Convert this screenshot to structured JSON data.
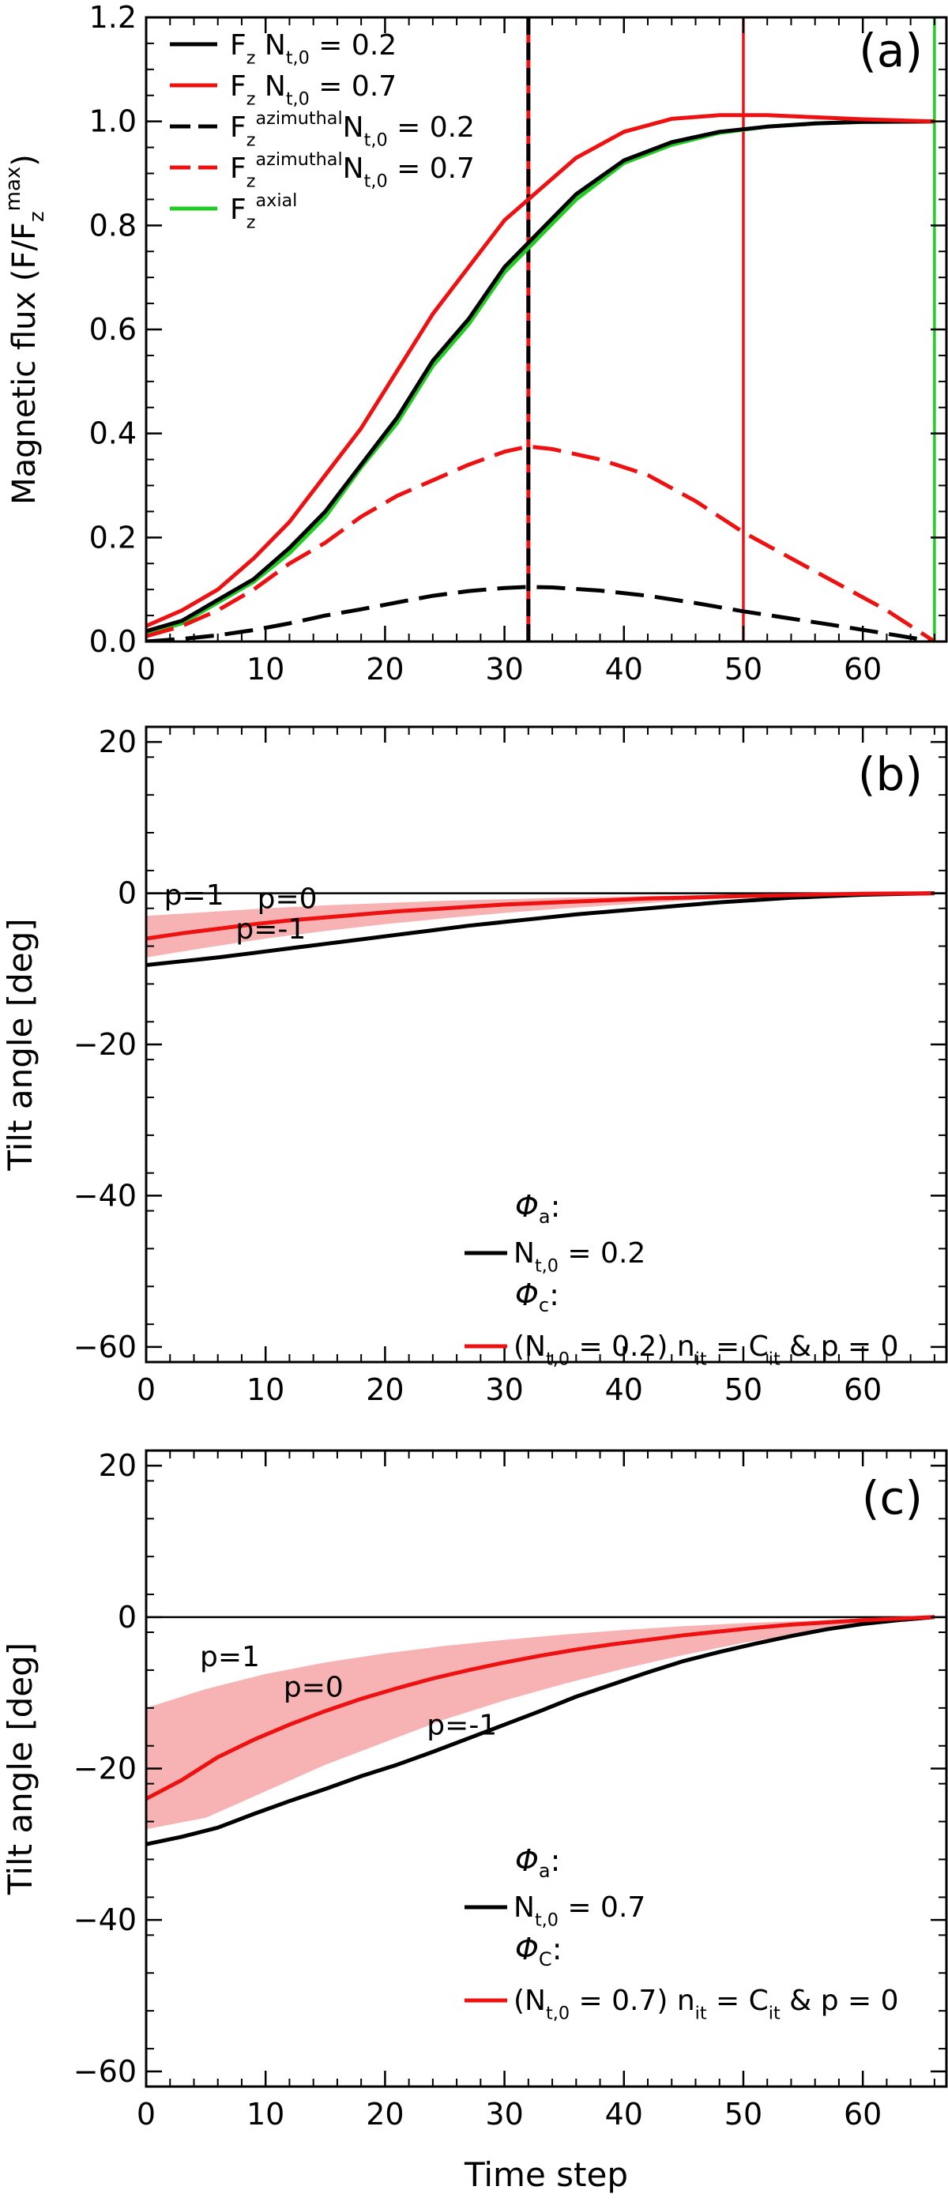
{
  "chart_data": [
    {
      "type": "line",
      "panel_label": "(a)",
      "ylabel": "Magnetic flux (F/F_z^max)",
      "ylabel_parts": {
        "main": "Magnetic flux (F/F",
        "sub": "z",
        "sup": "max",
        "close": ")"
      },
      "xlabel": "",
      "xlim": [
        0,
        67
      ],
      "ylim": [
        0,
        1.2
      ],
      "xticks": [
        "0",
        "10",
        "20",
        "30",
        "40",
        "50",
        "60"
      ],
      "yticks": [
        "0.0",
        "0.2",
        "0.4",
        "0.6",
        "0.8",
        "1.0",
        "1.2"
      ],
      "vlines": [
        {
          "x": 32,
          "color": "#000000",
          "style": "dashed-overlay",
          "overlay_color": "#ee1111"
        },
        {
          "x": 50,
          "color": "#ee1111",
          "style": "solid"
        },
        {
          "x": 66,
          "color": "#22cc22",
          "style": "solid"
        }
      ],
      "legend": [
        {
          "text": "F_z N_t,0 = 0.2",
          "parts": [
            [
              "F",
              ""
            ],
            [
              "z",
              "sub"
            ],
            [
              " N",
              ""
            ],
            [
              "t,0",
              "sub"
            ],
            [
              " = 0.2",
              ""
            ]
          ],
          "color": "#000000",
          "dash": false
        },
        {
          "text": "F_z N_t,0 = 0.7",
          "parts": [
            [
              "F",
              ""
            ],
            [
              "z",
              "sub"
            ],
            [
              " N",
              ""
            ],
            [
              "t,0",
              "sub"
            ],
            [
              " = 0.7",
              ""
            ]
          ],
          "color": "#ee1111",
          "dash": false
        },
        {
          "text": "F_z^azimuthal N_t,0 = 0.2",
          "parts": [
            [
              "F",
              ""
            ],
            [
              "z",
              "sub"
            ],
            [
              "azimuthal",
              "sup"
            ],
            [
              "N",
              ""
            ],
            [
              "t,0",
              "sub"
            ],
            [
              " = 0.2",
              ""
            ]
          ],
          "color": "#000000",
          "dash": true
        },
        {
          "text": "F_z^azimuthal N_t,0 = 0.7",
          "parts": [
            [
              "F",
              ""
            ],
            [
              "z",
              "sub"
            ],
            [
              "azimuthal",
              "sup"
            ],
            [
              "N",
              ""
            ],
            [
              "t,0",
              "sub"
            ],
            [
              " = 0.7",
              ""
            ]
          ],
          "color": "#ee1111",
          "dash": true
        },
        {
          "text": "F_z^axial",
          "parts": [
            [
              "F",
              ""
            ],
            [
              "z",
              "sub"
            ],
            [
              "axial",
              "sup"
            ]
          ],
          "color": "#22cc22",
          "dash": false
        }
      ],
      "series": [
        {
          "name": "F_z^axial",
          "color": "#22cc22",
          "dash": false,
          "x": [
            0,
            3,
            6,
            9,
            12,
            15,
            18,
            21,
            24,
            27,
            30,
            33,
            36,
            40,
            44,
            48,
            52,
            56,
            60,
            66
          ],
          "y": [
            0.015,
            0.035,
            0.075,
            0.115,
            0.17,
            0.24,
            0.335,
            0.42,
            0.53,
            0.61,
            0.71,
            0.78,
            0.85,
            0.92,
            0.955,
            0.978,
            0.99,
            0.996,
            0.999,
            1.0
          ]
        },
        {
          "name": "F_z N_t,0 = 0.2",
          "color": "#000000",
          "dash": false,
          "x": [
            0,
            3,
            6,
            9,
            12,
            15,
            18,
            21,
            24,
            27,
            30,
            33,
            36,
            40,
            44,
            48,
            52,
            56,
            60,
            66
          ],
          "y": [
            0.02,
            0.04,
            0.08,
            0.12,
            0.18,
            0.25,
            0.34,
            0.43,
            0.54,
            0.62,
            0.72,
            0.79,
            0.86,
            0.925,
            0.96,
            0.98,
            0.99,
            0.996,
            0.999,
            1.0
          ]
        },
        {
          "name": "F_z N_t,0 = 0.7",
          "color": "#ee1111",
          "dash": false,
          "x": [
            0,
            3,
            6,
            9,
            12,
            15,
            18,
            21,
            24,
            27,
            30,
            33,
            36,
            40,
            44,
            48,
            52,
            56,
            60,
            66
          ],
          "y": [
            0.03,
            0.06,
            0.1,
            0.16,
            0.23,
            0.32,
            0.41,
            0.52,
            0.63,
            0.72,
            0.81,
            0.87,
            0.93,
            0.98,
            1.005,
            1.012,
            1.012,
            1.008,
            1.004,
            1.0
          ]
        },
        {
          "name": "F_z^azimuthal N_t,0 = 0.2",
          "color": "#000000",
          "dash": true,
          "x": [
            0,
            3,
            6,
            9,
            12,
            15,
            18,
            21,
            24,
            27,
            30,
            32,
            34,
            38,
            42,
            46,
            50,
            54,
            58,
            62,
            66
          ],
          "y": [
            0.0,
            0.005,
            0.012,
            0.022,
            0.035,
            0.05,
            0.062,
            0.075,
            0.088,
            0.097,
            0.103,
            0.105,
            0.104,
            0.098,
            0.088,
            0.074,
            0.058,
            0.044,
            0.03,
            0.015,
            0.0
          ]
        },
        {
          "name": "F_z^azimuthal N_t,0 = 0.7",
          "color": "#ee1111",
          "dash": true,
          "x": [
            0,
            3,
            6,
            9,
            12,
            15,
            18,
            21,
            24,
            27,
            30,
            32,
            34,
            38,
            42,
            46,
            50,
            54,
            58,
            62,
            66
          ],
          "y": [
            0.01,
            0.03,
            0.06,
            0.1,
            0.15,
            0.19,
            0.24,
            0.28,
            0.31,
            0.34,
            0.365,
            0.375,
            0.37,
            0.35,
            0.32,
            0.27,
            0.21,
            0.16,
            0.11,
            0.06,
            0.0
          ]
        }
      ]
    },
    {
      "type": "line",
      "panel_label": "(b)",
      "ylabel": "Tilt angle [deg]",
      "xlabel": "",
      "xlim": [
        0,
        67
      ],
      "ylim": [
        -62,
        22
      ],
      "xticks": [
        "0",
        "10",
        "20",
        "30",
        "40",
        "50",
        "60"
      ],
      "yticks": [
        "−60",
        "−40",
        "−20",
        "0",
        "20"
      ],
      "ytick_values": [
        -60,
        -40,
        -20,
        0,
        20
      ],
      "zero_line": true,
      "band": {
        "name": "p range (p=1 to p=-1)",
        "color": "#f7b3b3",
        "x": [
          0,
          5,
          10,
          15,
          20,
          25,
          30,
          35,
          40,
          45,
          50,
          55,
          60,
          66
        ],
        "upper": [
          -3.0,
          -2.5,
          -2.0,
          -1.6,
          -1.3,
          -1.0,
          -0.8,
          -0.6,
          -0.45,
          -0.3,
          -0.2,
          -0.1,
          -0.05,
          0.0
        ],
        "lower": [
          -8.5,
          -7.2,
          -6.0,
          -5.0,
          -4.1,
          -3.3,
          -2.6,
          -2.0,
          -1.5,
          -1.0,
          -0.6,
          -0.3,
          -0.1,
          0.0
        ]
      },
      "annotations": [
        {
          "text": "p=1",
          "x": 1.5,
          "y": -1.5,
          "color": "#000000"
        },
        {
          "text": "p=0",
          "x": 9.3,
          "y": -2.0,
          "color": "#ee1111"
        },
        {
          "text": "p=-1",
          "x": 7.5,
          "y": -6.0,
          "color": "#000000"
        }
      ],
      "legend": {
        "phi_a": {
          "symbol": "Φ",
          "sub": "a",
          "suffix": ":"
        },
        "entry_a": {
          "text": "N_t,0 = 0.2",
          "parts": [
            [
              "N",
              ""
            ],
            [
              "t,0",
              "sub"
            ],
            [
              " = 0.2",
              ""
            ]
          ],
          "color": "#000000"
        },
        "phi_c": {
          "symbol": "Φ",
          "sub": "c",
          "suffix": ":"
        },
        "entry_c": {
          "text": "(N_t,0 = 0.2) n_it = C_it & p = 0",
          "parts": [
            [
              "(N",
              ""
            ],
            [
              "t,0",
              "sub"
            ],
            [
              " = 0.2) n",
              ""
            ],
            [
              "it",
              "sub"
            ],
            [
              " = C",
              ""
            ],
            [
              "it",
              "sub"
            ],
            [
              " & p = 0",
              ""
            ]
          ],
          "color": "#ee1111"
        }
      },
      "series": [
        {
          "name": "Φa: N_t,0 = 0.2",
          "color": "#000000",
          "x": [
            0,
            3,
            6,
            9,
            12,
            15,
            18,
            21,
            24,
            27,
            30,
            33,
            36,
            39,
            42,
            45,
            48,
            51,
            54,
            57,
            60,
            63,
            66
          ],
          "y": [
            -9.5,
            -9.0,
            -8.5,
            -7.9,
            -7.3,
            -6.7,
            -6.1,
            -5.5,
            -4.9,
            -4.3,
            -3.8,
            -3.3,
            -2.8,
            -2.4,
            -2.0,
            -1.6,
            -1.2,
            -0.9,
            -0.6,
            -0.4,
            -0.2,
            -0.1,
            0.0
          ]
        },
        {
          "name": "Φc: (N_t,0 = 0.2) n_it = C_it & p = 0",
          "color": "#ee1111",
          "x": [
            0,
            3,
            6,
            9,
            12,
            15,
            18,
            21,
            24,
            27,
            30,
            33,
            36,
            39,
            42,
            45,
            48,
            51,
            54,
            57,
            60,
            63,
            66
          ],
          "y": [
            -6.0,
            -5.3,
            -4.7,
            -4.1,
            -3.6,
            -3.2,
            -2.8,
            -2.4,
            -2.1,
            -1.8,
            -1.5,
            -1.3,
            -1.1,
            -0.9,
            -0.7,
            -0.6,
            -0.45,
            -0.35,
            -0.25,
            -0.15,
            -0.08,
            -0.03,
            0.0
          ]
        }
      ]
    },
    {
      "type": "line",
      "panel_label": "(c)",
      "ylabel": "Tilt angle [deg]",
      "xlabel": "Time step",
      "xlim": [
        0,
        67
      ],
      "ylim": [
        -62,
        22
      ],
      "xticks": [
        "0",
        "10",
        "20",
        "30",
        "40",
        "50",
        "60"
      ],
      "yticks": [
        "−60",
        "−40",
        "−20",
        "0",
        "20"
      ],
      "ytick_values": [
        -60,
        -40,
        -20,
        0,
        20
      ],
      "zero_line": true,
      "band": {
        "name": "p range (p=1 to p=-1)",
        "color": "#f7b3b3",
        "x": [
          0,
          5,
          10,
          15,
          20,
          25,
          30,
          35,
          40,
          45,
          50,
          55,
          60,
          66
        ],
        "upper": [
          -12.0,
          -9.5,
          -7.5,
          -6.0,
          -4.8,
          -3.8,
          -3.0,
          -2.3,
          -1.7,
          -1.2,
          -0.8,
          -0.5,
          -0.2,
          0.0
        ],
        "lower": [
          -28.0,
          -26.5,
          -23.0,
          -19.5,
          -16.5,
          -13.5,
          -11.0,
          -8.8,
          -6.8,
          -5.0,
          -3.4,
          -2.1,
          -1.0,
          0.0
        ]
      },
      "annotations": [
        {
          "text": "p=1",
          "x": 4.5,
          "y": -6.5,
          "color": "#000000"
        },
        {
          "text": "p=0",
          "x": 11.5,
          "y": -10.5,
          "color": "#ee1111"
        },
        {
          "text": "p=-1",
          "x": 23.5,
          "y": -15.5,
          "color": "#000000"
        }
      ],
      "legend": {
        "phi_a": {
          "symbol": "Φ",
          "sub": "a",
          "suffix": ":"
        },
        "entry_a": {
          "text": "N_t,0 = 0.7",
          "parts": [
            [
              "N",
              ""
            ],
            [
              "t,0",
              "sub"
            ],
            [
              " = 0.7",
              ""
            ]
          ],
          "color": "#000000"
        },
        "phi_c": {
          "symbol": "Φ",
          "sub": "C",
          "suffix": ":"
        },
        "entry_c": {
          "text": "(N_t,0 = 0.7) n_it = C_it & p = 0",
          "parts": [
            [
              "(N",
              ""
            ],
            [
              "t,0",
              "sub"
            ],
            [
              " = 0.7) n",
              ""
            ],
            [
              "it",
              "sub"
            ],
            [
              " = C",
              ""
            ],
            [
              "it",
              "sub"
            ],
            [
              " & p = 0",
              ""
            ]
          ],
          "color": "#ee1111"
        }
      },
      "series": [
        {
          "name": "Φa: N_t,0 = 0.7",
          "color": "#000000",
          "x": [
            0,
            3,
            6,
            9,
            12,
            15,
            18,
            21,
            24,
            27,
            30,
            33,
            36,
            39,
            42,
            45,
            48,
            51,
            54,
            57,
            60,
            63,
            66
          ],
          "y": [
            -30.0,
            -29.0,
            -27.8,
            -26.0,
            -24.3,
            -22.7,
            -21.0,
            -19.5,
            -17.8,
            -16.0,
            -14.2,
            -12.4,
            -10.5,
            -8.9,
            -7.3,
            -5.8,
            -4.6,
            -3.5,
            -2.5,
            -1.6,
            -0.9,
            -0.4,
            0.0
          ]
        },
        {
          "name": "Φc: (N_t,0 = 0.7) n_it = C_it & p = 0",
          "color": "#ee1111",
          "x": [
            0,
            3,
            6,
            9,
            12,
            15,
            18,
            21,
            24,
            27,
            30,
            33,
            36,
            39,
            42,
            45,
            48,
            51,
            54,
            57,
            60,
            63,
            66
          ],
          "y": [
            -24.0,
            -21.5,
            -18.5,
            -16.2,
            -14.2,
            -12.4,
            -10.8,
            -9.4,
            -8.1,
            -7.0,
            -6.0,
            -5.1,
            -4.3,
            -3.6,
            -3.0,
            -2.4,
            -1.9,
            -1.4,
            -1.0,
            -0.7,
            -0.4,
            -0.2,
            0.0
          ]
        }
      ]
    }
  ]
}
